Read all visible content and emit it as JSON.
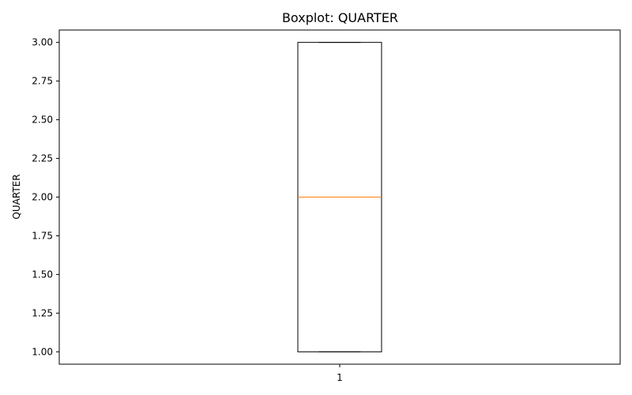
{
  "chart_data": {
    "type": "boxplot",
    "title": "Boxplot: QUARTER",
    "xlabel": "",
    "ylabel": "QUARTER",
    "categories": [
      "1"
    ],
    "boxes": [
      {
        "category": "1",
        "whisker_low": 1.0,
        "q1": 1.0,
        "median": 2.0,
        "q3": 3.0,
        "whisker_high": 3.0
      }
    ],
    "ylim": [
      0.92,
      3.08
    ],
    "y_ticks": [
      1.0,
      1.25,
      1.5,
      1.75,
      2.0,
      2.25,
      2.5,
      2.75,
      3.0
    ],
    "y_tick_labels": [
      "1.00",
      "1.25",
      "1.50",
      "1.75",
      "2.00",
      "2.25",
      "2.50",
      "2.75",
      "3.00"
    ],
    "grid": false,
    "colors": {
      "box": "#000000",
      "median": "#ff7f0e",
      "whisker": "#000000",
      "axes": "#000000"
    }
  }
}
